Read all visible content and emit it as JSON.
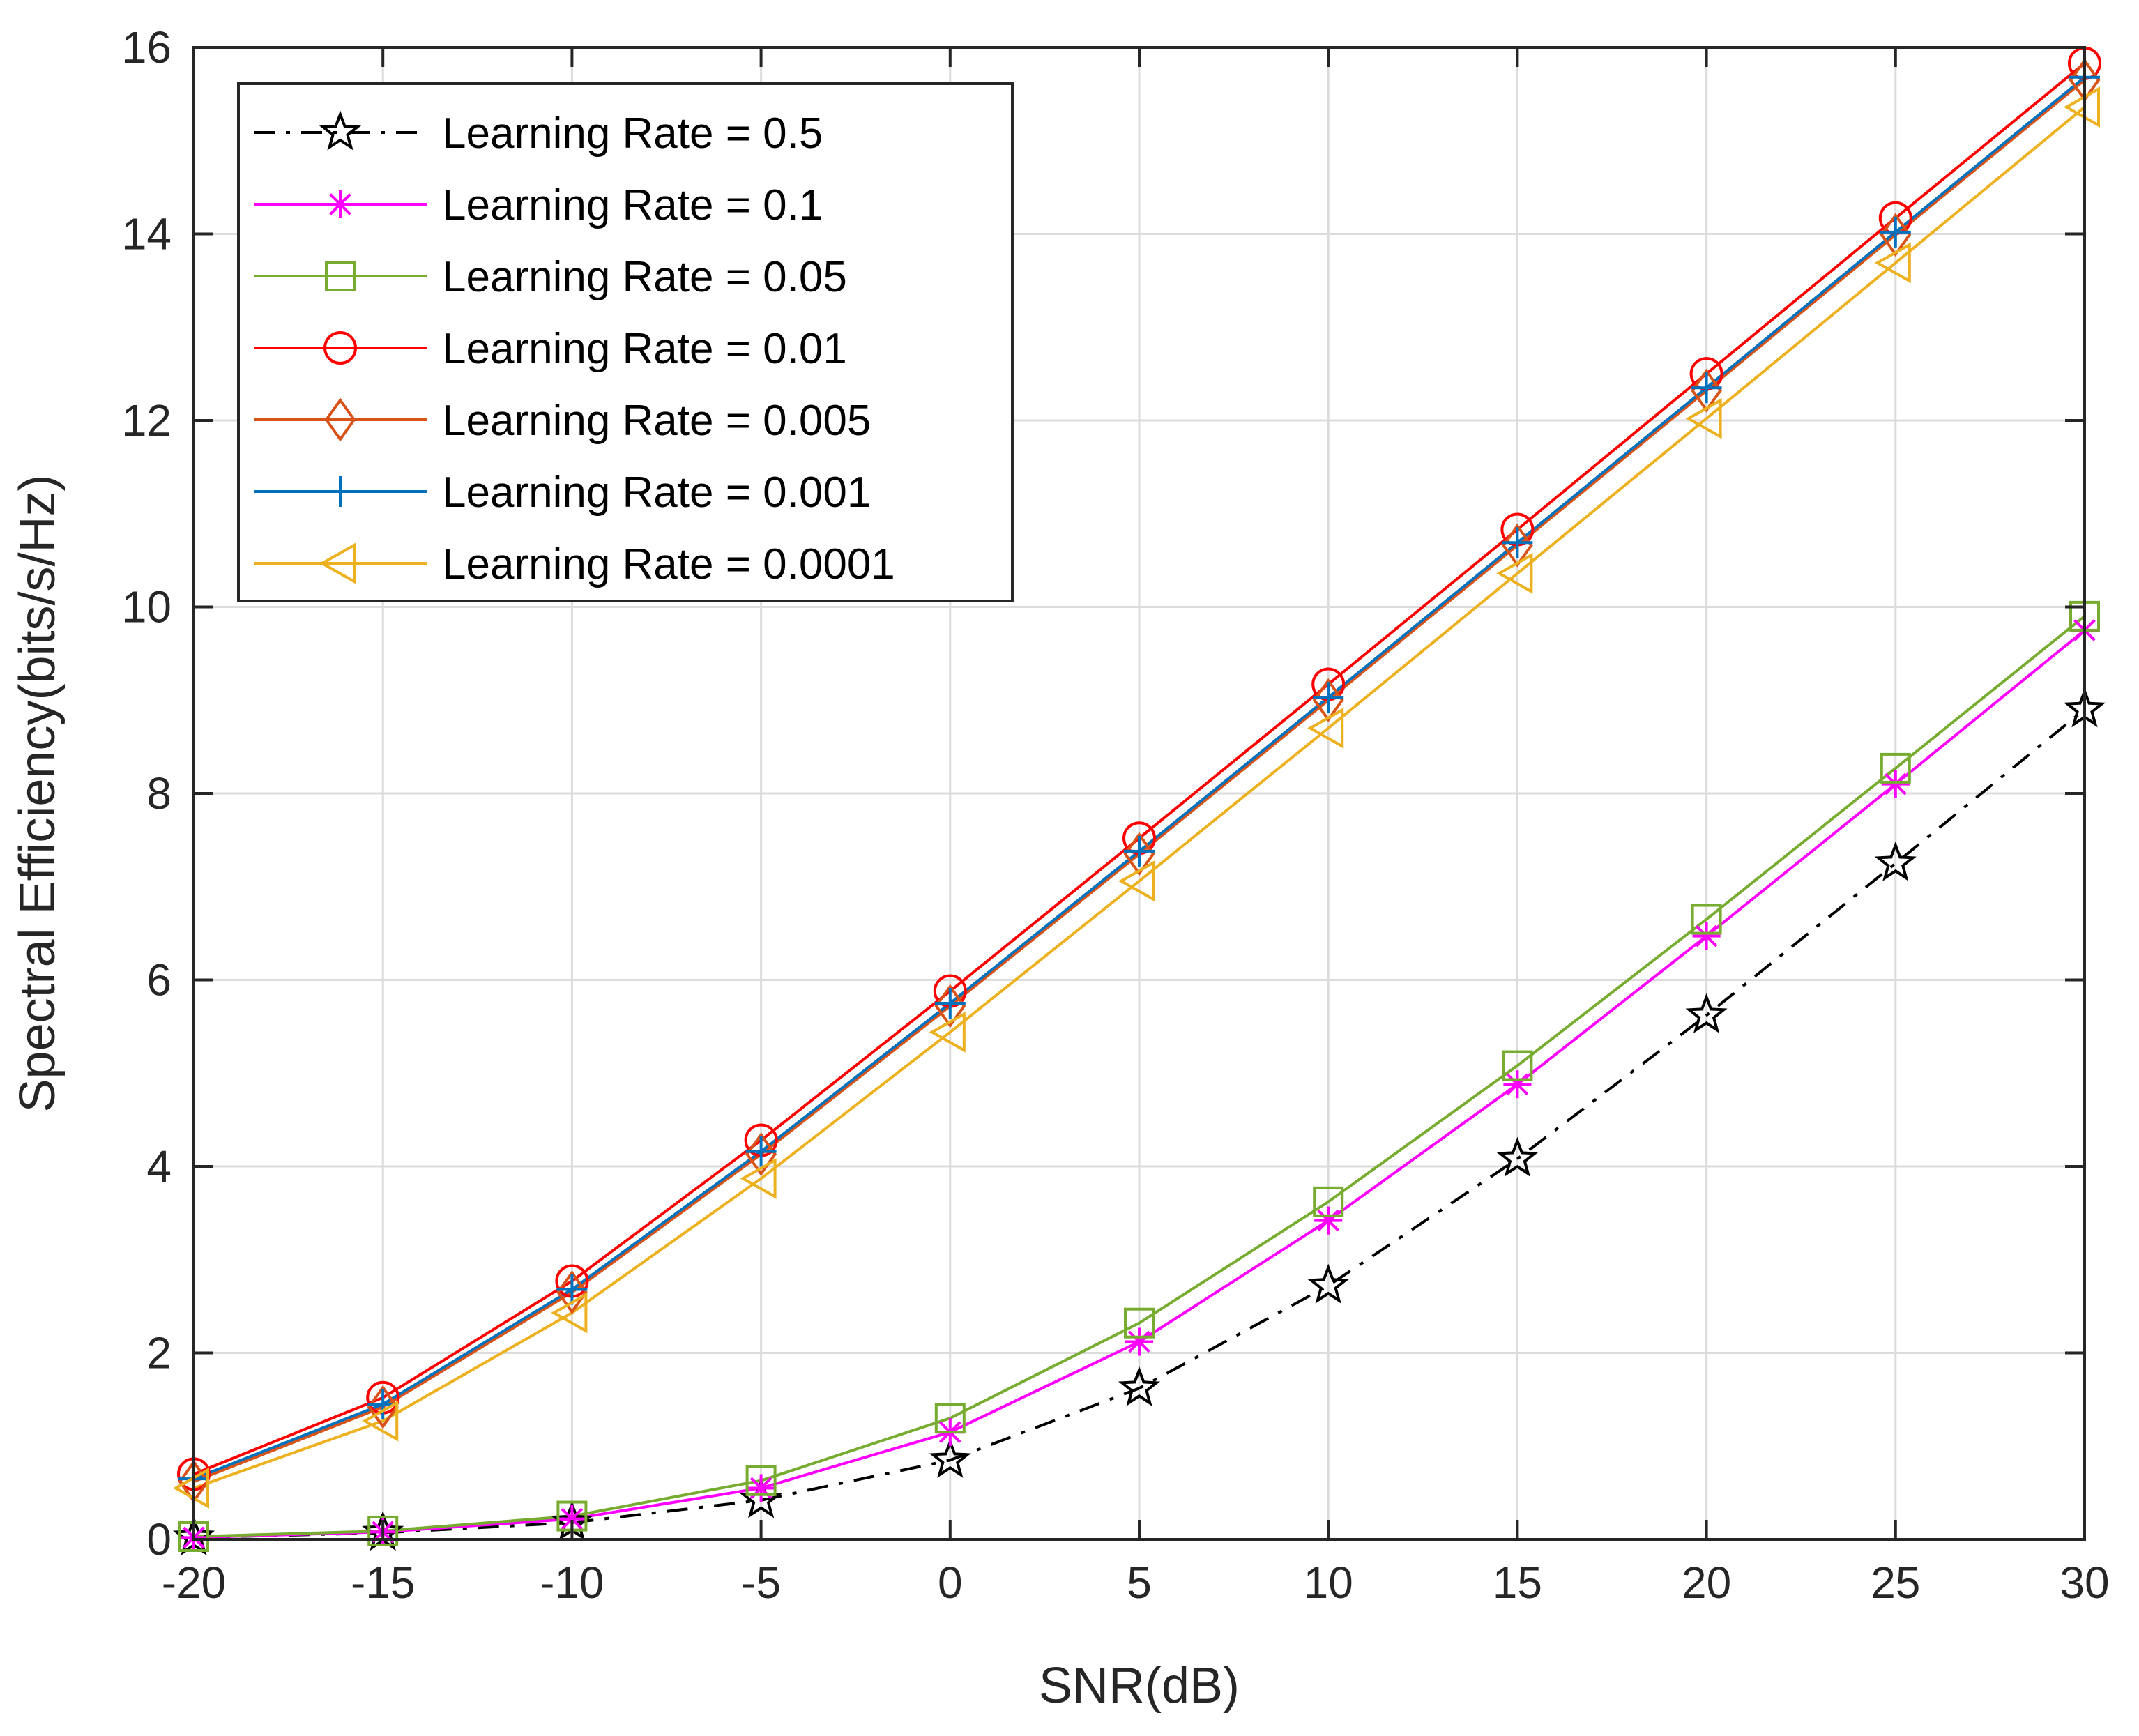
{
  "chart_data": {
    "type": "line",
    "title": "",
    "xlabel": "SNR(dB)",
    "ylabel": "Spectral Efficiency(bits/s/Hz)",
    "xlim": [
      -20,
      30
    ],
    "ylim": [
      0,
      16
    ],
    "xticks": [
      -20,
      -15,
      -10,
      -5,
      0,
      5,
      10,
      15,
      20,
      25,
      30
    ],
    "yticks": [
      0,
      2,
      4,
      6,
      8,
      10,
      12,
      14,
      16
    ],
    "grid": true,
    "legend_position": "top-left",
    "x": [
      -20,
      -15,
      -10,
      -5,
      0,
      5,
      10,
      15,
      20,
      25,
      30
    ],
    "series": [
      {
        "name": "Learning Rate = 0.5",
        "color": "#000000",
        "marker": "star",
        "dash": "dashdot",
        "values": [
          0.02,
          0.07,
          0.18,
          0.42,
          0.85,
          1.62,
          2.72,
          4.08,
          5.62,
          7.25,
          8.9
        ]
      },
      {
        "name": "Learning Rate = 0.1",
        "color": "#ff00ff",
        "marker": "asterisk",
        "dash": "solid",
        "values": [
          0.02,
          0.08,
          0.22,
          0.55,
          1.15,
          2.12,
          3.42,
          4.88,
          6.47,
          8.1,
          9.75
        ]
      },
      {
        "name": "Learning Rate = 0.05",
        "color": "#77ac30",
        "marker": "square",
        "dash": "solid",
        "values": [
          0.03,
          0.09,
          0.25,
          0.63,
          1.3,
          2.32,
          3.62,
          5.08,
          6.65,
          8.27,
          9.9
        ]
      },
      {
        "name": "Learning Rate = 0.01",
        "color": "#ff0000",
        "marker": "circle",
        "dash": "solid",
        "values": [
          0.7,
          1.52,
          2.77,
          4.28,
          5.88,
          7.52,
          9.17,
          10.83,
          12.5,
          14.17,
          15.83
        ]
      },
      {
        "name": "Learning Rate = 0.005",
        "color": "#d95319",
        "marker": "diamond",
        "dash": "solid",
        "values": [
          0.62,
          1.42,
          2.65,
          4.13,
          5.72,
          7.35,
          9.0,
          10.66,
          12.32,
          13.99,
          15.65
        ]
      },
      {
        "name": "Learning Rate = 0.001",
        "color": "#0072bd",
        "marker": "plus",
        "dash": "solid",
        "values": [
          0.65,
          1.45,
          2.68,
          4.16,
          5.75,
          7.38,
          9.03,
          10.69,
          12.35,
          14.02,
          15.68
        ]
      },
      {
        "name": "Learning Rate = 0.0001",
        "color": "#edb120",
        "marker": "triangle-left",
        "dash": "solid",
        "values": [
          0.55,
          1.27,
          2.43,
          3.87,
          5.44,
          7.06,
          8.7,
          10.36,
          12.02,
          13.69,
          15.36
        ]
      }
    ]
  }
}
